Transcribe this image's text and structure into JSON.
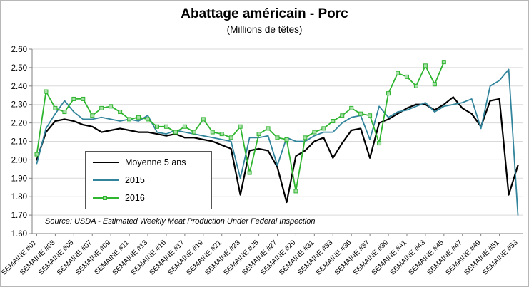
{
  "chart_data": {
    "type": "line",
    "title": "Abattage américain - Porc",
    "subtitle": "(Millions de têtes)",
    "source_note": "Source: USDA - Estimated Weekly Meat Production Under Federal Inspection",
    "xlabel": "",
    "ylabel": "",
    "ylim": [
      1.6,
      2.6
    ],
    "y_tick_step": 0.1,
    "grid": true,
    "legend_position": "inside-left",
    "y_ticks": [
      "2.60",
      "2.50",
      "2.40",
      "2.30",
      "2.20",
      "2.10",
      "2.00",
      "1.90",
      "1.80",
      "1.70",
      "1.60"
    ],
    "x_tick_labels": [
      "SEMAINE #01",
      "SEMAINE #03",
      "SEMAINE #05",
      "SEMAINE #07",
      "SEMAINE #09",
      "SEMAINE #11",
      "SEMAINE #13",
      "SEMAINE #15",
      "SEMAINE #17",
      "SEMAINE #19",
      "SEMAINE #21",
      "SEMAINE #23",
      "SEMAINE #25",
      "SEMAINE #27",
      "SEMAINE #29",
      "SEMAINE #31",
      "SEMAINE #33",
      "SEMAINE #35",
      "SEMAINE #37",
      "SEMAINE #39",
      "SEMAINE #41",
      "SEMAINE #43",
      "SEMAINE #45",
      "SEMAINE #47",
      "SEMAINE #49",
      "SEMAINE #51",
      "SEMAINE #53"
    ],
    "weeks_total": 53,
    "colors": {
      "moyenne": "#000000",
      "y2015": "#31849B",
      "y2016": "#2FB52F",
      "y2016_marker_fill": "#A9DFA9",
      "gridline": "#D9D9D9",
      "axis": "#808080"
    },
    "series": [
      {
        "name": "Moyenne 5 ans",
        "color": "#000000",
        "marker": "none",
        "values": [
          2.0,
          2.15,
          2.21,
          2.22,
          2.21,
          2.19,
          2.18,
          2.15,
          2.16,
          2.17,
          2.16,
          2.15,
          2.15,
          2.14,
          2.13,
          2.14,
          2.12,
          2.12,
          2.11,
          2.1,
          2.08,
          2.06,
          1.81,
          2.05,
          2.06,
          2.05,
          1.96,
          1.77,
          2.02,
          2.05,
          2.1,
          2.12,
          2.01,
          2.09,
          2.16,
          2.17,
          2.01,
          2.2,
          2.22,
          2.25,
          2.28,
          2.3,
          2.3,
          2.27,
          2.3,
          2.34,
          2.28,
          2.25,
          2.18,
          2.32,
          2.33,
          1.81,
          1.97
        ]
      },
      {
        "name": "2015",
        "color": "#31849B",
        "marker": "none",
        "values": [
          1.98,
          2.17,
          2.25,
          2.32,
          2.26,
          2.22,
          2.22,
          2.23,
          2.22,
          2.21,
          2.22,
          2.21,
          2.24,
          2.15,
          2.14,
          2.16,
          2.15,
          2.14,
          2.13,
          2.12,
          2.11,
          2.1,
          1.9,
          2.12,
          2.12,
          2.13,
          1.97,
          2.12,
          2.1,
          2.1,
          2.13,
          2.15,
          2.15,
          2.2,
          2.23,
          2.24,
          2.11,
          2.29,
          2.23,
          2.26,
          2.27,
          2.29,
          2.31,
          2.26,
          2.29,
          2.3,
          2.31,
          2.33,
          2.17,
          2.4,
          2.43,
          2.49,
          1.7
        ]
      },
      {
        "name": "2016",
        "color": "#2FB52F",
        "marker": "square",
        "marker_fill": "#A9DFA9",
        "values": [
          2.03,
          2.37,
          2.28,
          2.26,
          2.33,
          2.33,
          2.24,
          2.28,
          2.29,
          2.26,
          2.22,
          2.23,
          2.22,
          2.18,
          2.18,
          2.15,
          2.18,
          2.15,
          2.22,
          2.15,
          2.14,
          2.12,
          2.18,
          1.93,
          2.14,
          2.17,
          2.12,
          2.11,
          1.83,
          2.12,
          2.15,
          2.17,
          2.21,
          2.24,
          2.28,
          2.25,
          2.24,
          2.09,
          2.36,
          2.47,
          2.45,
          2.4,
          2.51,
          2.41,
          2.53
        ]
      }
    ]
  }
}
